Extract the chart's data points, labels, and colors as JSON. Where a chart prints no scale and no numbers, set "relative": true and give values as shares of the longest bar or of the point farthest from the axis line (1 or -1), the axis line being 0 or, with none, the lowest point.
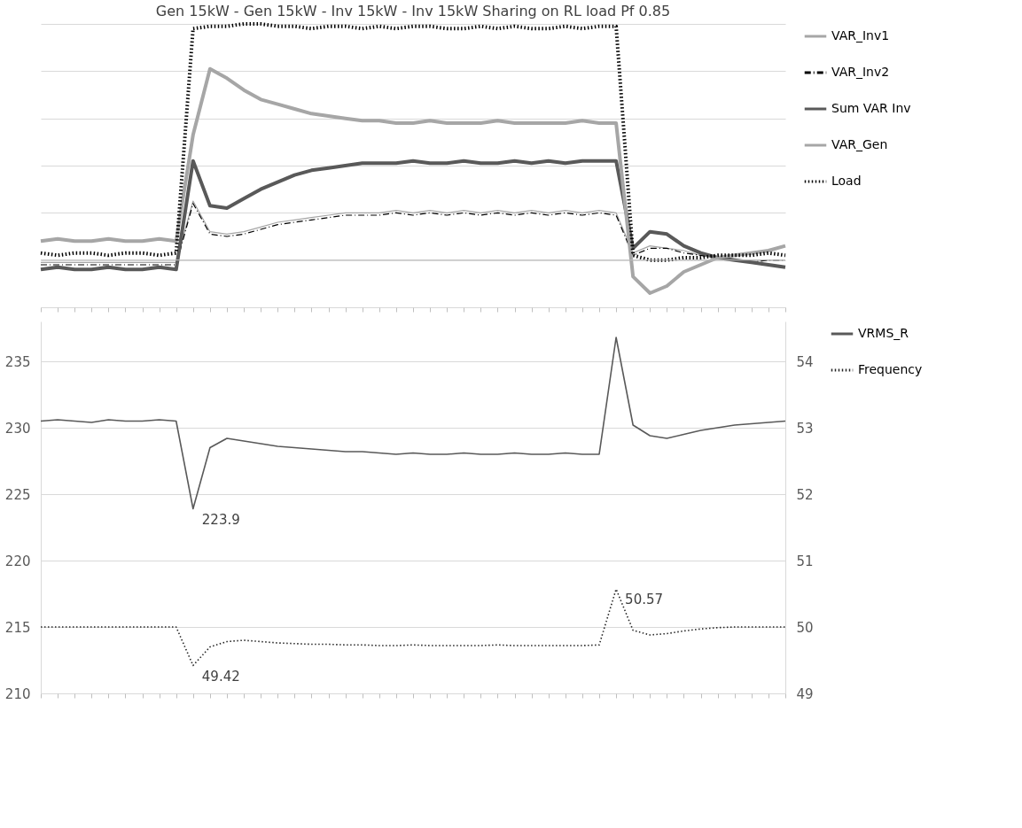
{
  "chart_data": [
    {
      "type": "line",
      "title": "Gen 15kW - Gen 15kW - Inv 15kW - Inv 15kW Sharing on RL load Pf 0.85",
      "relative": true,
      "grid": "y",
      "legend": "right",
      "categories": [
        null,
        null,
        null,
        null,
        null,
        null,
        null,
        null,
        null,
        null,
        null,
        null,
        null,
        null,
        null,
        null,
        null,
        null,
        null,
        null,
        null,
        null,
        null,
        null,
        null,
        null,
        null,
        null,
        null,
        null,
        null,
        null,
        null,
        null,
        null,
        null,
        null,
        null,
        null,
        null,
        null,
        null,
        null,
        null,
        null
      ],
      "series": [
        {
          "name": "VAR_Inv1",
          "color": "#a6a6a6",
          "line_style": "solid",
          "values": [
            -0.01,
            -0.01,
            -0.01,
            -0.01,
            -0.01,
            -0.01,
            -0.01,
            -0.01,
            -0.01,
            0.25,
            0.12,
            0.11,
            0.12,
            0.14,
            0.16,
            0.17,
            0.18,
            0.19,
            0.2,
            0.2,
            0.2,
            0.21,
            0.2,
            0.21,
            0.2,
            0.21,
            0.2,
            0.21,
            0.2,
            0.21,
            0.2,
            0.21,
            0.2,
            0.21,
            0.2,
            0.03,
            0.06,
            0.05,
            0.04,
            0.02,
            0.01,
            0.0,
            0.0,
            0.0,
            0.0
          ]
        },
        {
          "name": "VAR_Inv2",
          "color": "#000000",
          "line_style": "dashed",
          "values": [
            -0.02,
            -0.02,
            -0.02,
            -0.02,
            -0.02,
            -0.02,
            -0.02,
            -0.02,
            -0.02,
            0.24,
            0.11,
            0.1,
            0.11,
            0.13,
            0.15,
            0.16,
            0.17,
            0.18,
            0.19,
            0.19,
            0.19,
            0.2,
            0.19,
            0.2,
            0.19,
            0.2,
            0.19,
            0.2,
            0.19,
            0.2,
            0.19,
            0.2,
            0.19,
            0.2,
            0.19,
            0.02,
            0.05,
            0.05,
            0.03,
            0.02,
            0.01,
            0.0,
            -0.01,
            0.0,
            0.0
          ]
        },
        {
          "name": "Sum VAR Inv",
          "color": "#595959",
          "line_style": "solid",
          "values": [
            -0.04,
            -0.03,
            -0.04,
            -0.04,
            -0.03,
            -0.04,
            -0.04,
            -0.03,
            -0.04,
            0.42,
            0.23,
            0.22,
            0.26,
            0.3,
            0.33,
            0.36,
            0.38,
            0.39,
            0.4,
            0.41,
            0.41,
            0.41,
            0.42,
            0.41,
            0.41,
            0.42,
            0.41,
            0.41,
            0.42,
            0.41,
            0.42,
            0.41,
            0.42,
            0.42,
            0.42,
            0.05,
            0.12,
            0.11,
            0.06,
            0.03,
            0.01,
            0.0,
            -0.01,
            -0.02,
            -0.03
          ]
        },
        {
          "name": "VAR_Gen",
          "color": "#a6a6a6",
          "line_style": "solid",
          "values": [
            0.08,
            0.09,
            0.08,
            0.08,
            0.09,
            0.08,
            0.08,
            0.09,
            0.08,
            0.53,
            0.81,
            0.77,
            0.72,
            0.68,
            0.66,
            0.64,
            0.62,
            0.61,
            0.6,
            0.59,
            0.59,
            0.58,
            0.58,
            0.59,
            0.58,
            0.58,
            0.58,
            0.59,
            0.58,
            0.58,
            0.58,
            0.58,
            0.59,
            0.58,
            0.58,
            -0.07,
            -0.14,
            -0.11,
            -0.05,
            -0.02,
            0.01,
            0.02,
            0.03,
            0.04,
            0.06
          ]
        },
        {
          "name": "Load",
          "color": "#000000",
          "line_style": "dotted",
          "values": [
            0.03,
            0.02,
            0.03,
            0.03,
            0.02,
            0.03,
            0.03,
            0.02,
            0.03,
            0.98,
            0.99,
            0.99,
            1.0,
            1.0,
            0.99,
            0.99,
            0.98,
            0.99,
            0.99,
            0.98,
            0.99,
            0.98,
            0.99,
            0.99,
            0.98,
            0.98,
            0.99,
            0.98,
            0.99,
            0.98,
            0.98,
            0.99,
            0.98,
            0.99,
            0.99,
            0.02,
            0.0,
            0.0,
            0.01,
            0.01,
            0.02,
            0.02,
            0.02,
            0.03,
            0.02
          ]
        }
      ]
    },
    {
      "type": "line",
      "grid": "y",
      "legend": "right",
      "ylim": [
        210,
        238
      ],
      "yticks": [
        210,
        215,
        220,
        225,
        230,
        235
      ],
      "y2lim": [
        49,
        54.6
      ],
      "y2ticks": [
        49,
        50,
        51,
        52,
        53,
        54
      ],
      "categories": [
        null,
        null,
        null,
        null,
        null,
        null,
        null,
        null,
        null,
        null,
        null,
        null,
        null,
        null,
        null,
        null,
        null,
        null,
        null,
        null,
        null,
        null,
        null,
        null,
        null,
        null,
        null,
        null,
        null,
        null,
        null,
        null,
        null,
        null,
        null,
        null,
        null,
        null,
        null,
        null,
        null,
        null,
        null,
        null,
        null
      ],
      "series": [
        {
          "name": "VRMS_R",
          "color": "#595959",
          "line_style": "solid",
          "values": [
            230.5,
            230.6,
            230.5,
            230.4,
            230.6,
            230.5,
            230.5,
            230.6,
            230.5,
            223.9,
            228.5,
            229.2,
            229.0,
            228.8,
            228.6,
            228.5,
            228.4,
            228.3,
            228.2,
            228.2,
            228.1,
            228.0,
            228.1,
            228.0,
            228.0,
            228.1,
            228.0,
            228.0,
            228.1,
            228.0,
            228.0,
            228.1,
            228.0,
            228.0,
            236.8,
            230.2,
            229.4,
            229.2,
            229.5,
            229.8,
            230.0,
            230.2,
            230.3,
            230.4,
            230.5
          ]
        },
        {
          "name": "Frequency",
          "color": "#262626",
          "line_style": "dotted",
          "axis": "y2",
          "values": [
            50.0,
            50.0,
            50.0,
            50.0,
            50.0,
            50.0,
            50.0,
            50.0,
            50.0,
            49.42,
            49.7,
            49.78,
            49.8,
            49.78,
            49.76,
            49.75,
            49.74,
            49.74,
            49.73,
            49.73,
            49.72,
            49.72,
            49.73,
            49.72,
            49.72,
            49.72,
            49.72,
            49.73,
            49.72,
            49.72,
            49.72,
            49.72,
            49.72,
            49.73,
            50.57,
            49.95,
            49.88,
            49.9,
            49.94,
            49.97,
            49.99,
            50.0,
            50.0,
            50.0,
            50.0
          ]
        }
      ],
      "annotations": [
        "223.9",
        "49.42",
        "50.57"
      ]
    }
  ]
}
